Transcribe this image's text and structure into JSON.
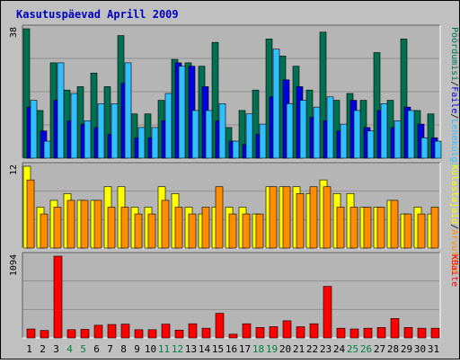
{
  "title": "Kasutuspäevad Aprill 2009",
  "colors": {
    "background": "#c0c0c0",
    "plot": "#b5b5b5",
    "title": "#0000c0",
    "visits_top": "#007050",
    "pages": "#0000e0",
    "files": "#30c0ff",
    "hosts": "#ffff00",
    "kbytes": "#ff0000",
    "weekday_label": "#000000",
    "weekend_label": "#008040"
  },
  "chart_data": [
    {
      "type": "bar",
      "panel": "top",
      "ymax_label": "38",
      "ylim": [
        0,
        38
      ],
      "legend_right": [
        "Pöördumisi",
        "/",
        "Faile",
        "/",
        "Lehekülgi"
      ],
      "categories": [
        "1",
        "2",
        "3",
        "4",
        "5",
        "6",
        "7",
        "8",
        "9",
        "10",
        "11",
        "12",
        "13",
        "14",
        "15",
        "16",
        "17",
        "18",
        "19",
        "20",
        "21",
        "22",
        "23",
        "24",
        "25",
        "26",
        "27",
        "28",
        "29",
        "30",
        "31"
      ],
      "series": [
        {
          "name": "Pöördumisi",
          "values": [
            38,
            14,
            28,
            20,
            21,
            25,
            21,
            36,
            13,
            13,
            17,
            29,
            28,
            27,
            34,
            9,
            14,
            20,
            35,
            30,
            27,
            20,
            37,
            17,
            19,
            17,
            31,
            17,
            35,
            14,
            13
          ]
        },
        {
          "name": "Faile",
          "values": [
            15,
            8,
            17,
            11,
            10,
            9,
            7,
            22,
            6,
            6,
            11,
            28,
            27,
            21,
            11,
            5,
            4,
            7,
            18,
            23,
            21,
            12,
            11,
            8,
            17,
            9,
            14,
            9,
            15,
            10,
            6
          ]
        },
        {
          "name": "Lehekülgi",
          "values": [
            17,
            5,
            28,
            19,
            11,
            16,
            16,
            28,
            9,
            9,
            19,
            27,
            14,
            14,
            16,
            5,
            13,
            10,
            32,
            16,
            17,
            15,
            18,
            10,
            14,
            8,
            16,
            11,
            14,
            6,
            5
          ]
        }
      ]
    },
    {
      "type": "bar",
      "panel": "middle",
      "ymax_label": "12",
      "ylim": [
        0,
        12
      ],
      "legend_right": [
        "Külastajaid",
        "/",
        "Arvuteid"
      ],
      "categories": [
        "1",
        "2",
        "3",
        "4",
        "5",
        "6",
        "7",
        "8",
        "9",
        "10",
        "11",
        "12",
        "13",
        "14",
        "15",
        "16",
        "17",
        "18",
        "19",
        "20",
        "21",
        "22",
        "23",
        "24",
        "25",
        "26",
        "27",
        "28",
        "29",
        "30",
        "31"
      ],
      "series": [
        {
          "name": "Külastajaid",
          "values": [
            12,
            6,
            7,
            8,
            7,
            7,
            9,
            9,
            6,
            6,
            9,
            8,
            6,
            5,
            6,
            6,
            6,
            5,
            9,
            9,
            9,
            8,
            10,
            8,
            8,
            6,
            6,
            7,
            5,
            6,
            5
          ]
        },
        {
          "name": "Arvuteid",
          "values": [
            10,
            5,
            6,
            7,
            7,
            7,
            6,
            6,
            5,
            5,
            7,
            6,
            5,
            6,
            9,
            5,
            5,
            5,
            9,
            9,
            8,
            9,
            9,
            6,
            6,
            6,
            6,
            7,
            5,
            5,
            6
          ]
        }
      ]
    },
    {
      "type": "bar",
      "panel": "bottom",
      "ymax_label": "1094",
      "ylim": [
        0,
        1094
      ],
      "legend_right": [
        "KBaite"
      ],
      "categories": [
        "1",
        "2",
        "3",
        "4",
        "5",
        "6",
        "7",
        "8",
        "9",
        "10",
        "11",
        "12",
        "13",
        "14",
        "15",
        "16",
        "17",
        "18",
        "19",
        "20",
        "21",
        "22",
        "23",
        "24",
        "25",
        "26",
        "27",
        "28",
        "29",
        "30",
        "31"
      ],
      "series": [
        {
          "name": "KBaite",
          "values": [
            120,
            100,
            1094,
            110,
            115,
            170,
            180,
            185,
            110,
            110,
            185,
            105,
            190,
            130,
            330,
            50,
            190,
            140,
            150,
            230,
            150,
            190,
            690,
            130,
            120,
            130,
            140,
            260,
            140,
            130,
            130
          ]
        }
      ]
    }
  ],
  "x_labels": [
    {
      "label": "1",
      "weekend": false
    },
    {
      "label": "2",
      "weekend": false
    },
    {
      "label": "3",
      "weekend": false
    },
    {
      "label": "4",
      "weekend": true
    },
    {
      "label": "5",
      "weekend": true
    },
    {
      "label": "6",
      "weekend": false
    },
    {
      "label": "7",
      "weekend": false
    },
    {
      "label": "8",
      "weekend": false
    },
    {
      "label": "9",
      "weekend": false
    },
    {
      "label": "10",
      "weekend": false
    },
    {
      "label": "11",
      "weekend": true
    },
    {
      "label": "12",
      "weekend": true
    },
    {
      "label": "13",
      "weekend": false
    },
    {
      "label": "14",
      "weekend": false
    },
    {
      "label": "15",
      "weekend": false
    },
    {
      "label": "16",
      "weekend": false
    },
    {
      "label": "17",
      "weekend": false
    },
    {
      "label": "18",
      "weekend": true
    },
    {
      "label": "19",
      "weekend": true
    },
    {
      "label": "20",
      "weekend": false
    },
    {
      "label": "21",
      "weekend": false
    },
    {
      "label": "22",
      "weekend": false
    },
    {
      "label": "23",
      "weekend": false
    },
    {
      "label": "24",
      "weekend": false
    },
    {
      "label": "25",
      "weekend": true
    },
    {
      "label": "26",
      "weekend": true
    },
    {
      "label": "27",
      "weekend": false
    },
    {
      "label": "28",
      "weekend": false
    },
    {
      "label": "29",
      "weekend": false
    },
    {
      "label": "30",
      "weekend": false
    },
    {
      "label": "31",
      "weekend": false
    }
  ]
}
